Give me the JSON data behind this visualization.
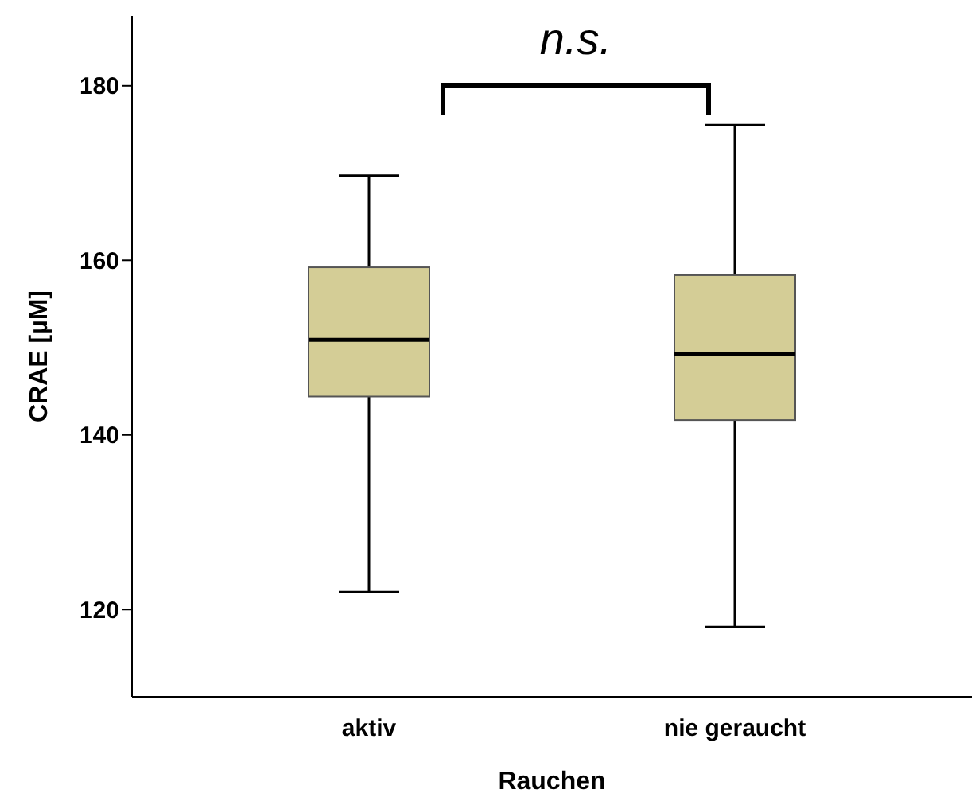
{
  "chart_data": {
    "type": "box",
    "xlabel": "Rauchen",
    "ylabel": "CRAE [µM]",
    "categories": [
      "aktiv",
      "nie geraucht"
    ],
    "boxes": [
      {
        "low": 122,
        "q1": 144.4,
        "median": 150.9,
        "q3": 159.2,
        "high": 169.7
      },
      {
        "low": 118,
        "q1": 141.7,
        "median": 149.3,
        "q3": 158.3,
        "high": 175.5
      }
    ],
    "color": "#d4cd96",
    "ylim": [
      110,
      188
    ],
    "yticks": [
      120,
      140,
      160,
      180
    ],
    "annotations": [
      "n.s."
    ]
  }
}
